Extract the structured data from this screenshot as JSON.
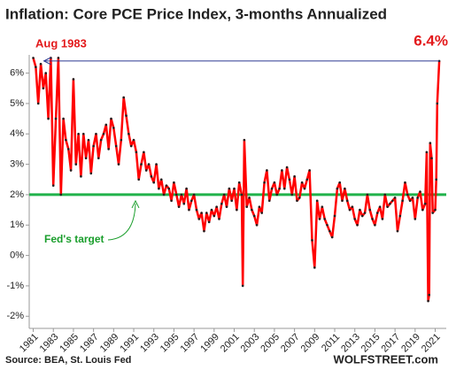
{
  "chart_data": {
    "type": "line",
    "title": "Inflation: Core PCE Price Index, 3-months Annualized",
    "source": "Source: BEA, St. Louis Fed",
    "brand": "WOLFSTREET.com",
    "annotations": [
      {
        "text": "Aug 1983",
        "color": "#e31a1c"
      },
      {
        "text": "6.4%",
        "color": "#e31a1c"
      },
      {
        "text": "Fed's target",
        "color": "#1a9e2c"
      }
    ],
    "reference_line": {
      "value": 2,
      "color": "#21b24b"
    },
    "arrow_color": "#2b3990",
    "xlim": [
      1980.6,
      2022.1
    ],
    "xticks": [
      1981,
      1983,
      1985,
      1987,
      1989,
      1991,
      1993,
      1995,
      1997,
      1999,
      2001,
      2003,
      2005,
      2007,
      2009,
      2011,
      2013,
      2015,
      2017,
      2019,
      2021
    ],
    "ylim": [
      -2.4,
      6.6
    ],
    "yticks": [
      {
        "value": -2,
        "label": "-2%"
      },
      {
        "value": -1,
        "label": "-1%"
      },
      {
        "value": 0,
        "label": "0%"
      },
      {
        "value": 1,
        "label": "1%"
      },
      {
        "value": 2,
        "label": "2%"
      },
      {
        "value": 3,
        "label": "3%"
      },
      {
        "value": 4,
        "label": "4%"
      },
      {
        "value": 5,
        "label": "5%"
      },
      {
        "value": 6,
        "label": "6%"
      }
    ],
    "x": [
      1981.0,
      1981.25,
      1981.5,
      1981.75,
      1982.0,
      1982.25,
      1982.5,
      1982.75,
      1983.0,
      1983.25,
      1983.5,
      1983.75,
      1984.0,
      1984.25,
      1984.5,
      1984.75,
      1985.0,
      1985.25,
      1985.5,
      1985.75,
      1986.0,
      1986.25,
      1986.5,
      1986.75,
      1987.0,
      1987.25,
      1987.5,
      1987.75,
      1988.0,
      1988.25,
      1988.5,
      1988.75,
      1989.0,
      1989.25,
      1989.5,
      1989.75,
      1990.0,
      1990.25,
      1990.5,
      1990.75,
      1991.0,
      1991.25,
      1991.5,
      1991.75,
      1992.0,
      1992.25,
      1992.5,
      1992.75,
      1993.0,
      1993.25,
      1993.5,
      1993.75,
      1994.0,
      1994.25,
      1994.5,
      1994.75,
      1995.0,
      1995.25,
      1995.5,
      1995.75,
      1996.0,
      1996.25,
      1996.5,
      1996.75,
      1997.0,
      1997.25,
      1997.5,
      1997.75,
      1998.0,
      1998.25,
      1998.5,
      1998.75,
      1999.0,
      1999.25,
      1999.5,
      1999.75,
      2000.0,
      2000.25,
      2000.5,
      2000.75,
      2001.0,
      2001.25,
      2001.5,
      2001.75,
      2001.85,
      2002.0,
      2002.25,
      2002.5,
      2002.75,
      2003.0,
      2003.25,
      2003.5,
      2003.75,
      2004.0,
      2004.25,
      2004.5,
      2004.75,
      2005.0,
      2005.25,
      2005.5,
      2005.75,
      2006.0,
      2006.25,
      2006.5,
      2006.75,
      2007.0,
      2007.25,
      2007.5,
      2007.75,
      2008.0,
      2008.25,
      2008.5,
      2008.75,
      2009.0,
      2009.25,
      2009.5,
      2009.75,
      2010.0,
      2010.25,
      2010.5,
      2010.75,
      2011.0,
      2011.25,
      2011.5,
      2011.75,
      2012.0,
      2012.25,
      2012.5,
      2012.75,
      2013.0,
      2013.25,
      2013.5,
      2013.75,
      2014.0,
      2014.25,
      2014.5,
      2014.75,
      2015.0,
      2015.25,
      2015.5,
      2015.75,
      2016.0,
      2016.25,
      2016.5,
      2016.75,
      2017.0,
      2017.25,
      2017.5,
      2017.75,
      2018.0,
      2018.25,
      2018.5,
      2018.75,
      2019.0,
      2019.25,
      2019.5,
      2019.75,
      2020.0,
      2020.15,
      2020.3,
      2020.4,
      2020.5,
      2020.65,
      2020.75,
      2021.0,
      2021.1,
      2021.2,
      2021.4
    ],
    "series": [
      {
        "name": "Core PCE Price Index, 3-months Annualized",
        "color": "#ff0000",
        "values": [
          6.5,
          6.2,
          5.0,
          6.3,
          5.5,
          6.0,
          4.5,
          6.5,
          2.3,
          4.5,
          6.5,
          2.0,
          4.5,
          3.8,
          3.5,
          2.8,
          5.8,
          3.0,
          4.0,
          2.6,
          4.0,
          3.2,
          3.8,
          2.7,
          3.6,
          4.0,
          3.2,
          3.8,
          4.0,
          4.3,
          3.5,
          4.5,
          4.2,
          3.6,
          3.0,
          3.8,
          5.2,
          4.6,
          4.0,
          3.6,
          3.8,
          3.4,
          2.5,
          3.0,
          3.4,
          2.8,
          3.0,
          2.6,
          2.4,
          3.0,
          2.2,
          2.5,
          2.0,
          2.3,
          2.2,
          1.8,
          2.4,
          2.0,
          1.6,
          2.0,
          1.7,
          2.2,
          1.5,
          1.8,
          2.0,
          1.5,
          1.2,
          1.4,
          0.8,
          1.4,
          1.1,
          1.5,
          1.3,
          1.6,
          1.2,
          1.7,
          2.0,
          1.6,
          2.2,
          1.8,
          2.2,
          1.5,
          2.4,
          2.0,
          -1.0,
          3.8,
          1.6,
          1.9,
          1.5,
          1.3,
          1.0,
          1.6,
          1.4,
          2.4,
          2.8,
          1.8,
          2.2,
          2.4,
          2.0,
          2.2,
          2.8,
          2.2,
          2.9,
          2.5,
          2.0,
          2.6,
          1.8,
          1.9,
          2.4,
          2.2,
          2.5,
          2.8,
          0.5,
          -0.4,
          1.8,
          1.2,
          1.6,
          1.2,
          1.0,
          0.8,
          0.6,
          1.3,
          2.2,
          2.4,
          1.8,
          2.2,
          1.8,
          1.5,
          1.6,
          1.2,
          1.0,
          1.5,
          1.3,
          1.4,
          2.0,
          1.5,
          1.2,
          1.0,
          1.4,
          1.6,
          1.2,
          2.0,
          1.6,
          1.7,
          1.8,
          1.9,
          0.8,
          1.3,
          1.8,
          2.4,
          2.0,
          1.8,
          1.9,
          1.2,
          1.9,
          2.1,
          1.5,
          1.7,
          3.4,
          -1.5,
          -1.3,
          3.7,
          3.2,
          1.4,
          1.5,
          2.5,
          5.0,
          6.4
        ]
      }
    ]
  }
}
